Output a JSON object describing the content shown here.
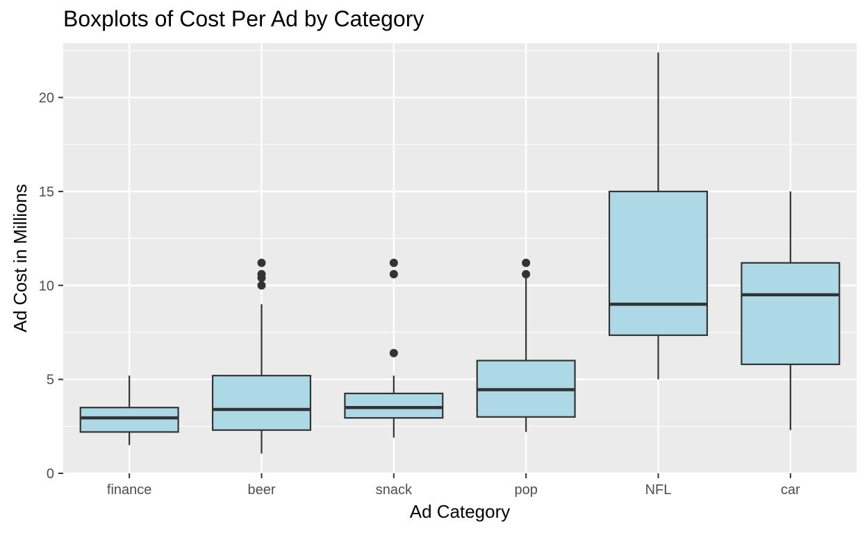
{
  "chart_data": {
    "type": "boxplot",
    "title": "Boxplots of Cost Per Ad by Category",
    "xlabel": "Ad Category",
    "ylabel": "Ad Cost in Millions",
    "ylim": [
      0,
      22.9
    ],
    "yticks": [
      0,
      5,
      10,
      15,
      20
    ],
    "grid": true,
    "colors": {
      "panel": "#ebebeb",
      "grid": "#ffffff",
      "box_fill": "#add8e6",
      "stroke": "#333333",
      "tick_text": "#4d4d4d"
    },
    "categories": [
      "finance",
      "beer",
      "snack",
      "pop",
      "NFL",
      "car"
    ],
    "boxes": [
      {
        "category": "finance",
        "whisker_low": 1.5,
        "q1": 2.2,
        "median": 2.95,
        "q3": 3.5,
        "whisker_high": 5.2,
        "outliers": []
      },
      {
        "category": "beer",
        "whisker_low": 1.05,
        "q1": 2.3,
        "median": 3.4,
        "q3": 5.2,
        "whisker_high": 9.0,
        "outliers": [
          10.0,
          10.4,
          10.6,
          11.2
        ]
      },
      {
        "category": "snack",
        "whisker_low": 1.9,
        "q1": 2.95,
        "median": 3.5,
        "q3": 4.25,
        "whisker_high": 5.2,
        "outliers": [
          6.4,
          10.6,
          11.2
        ]
      },
      {
        "category": "pop",
        "whisker_low": 2.2,
        "q1": 3.0,
        "median": 4.45,
        "q3": 6.0,
        "whisker_high": 10.5,
        "outliers": [
          10.6,
          11.2
        ]
      },
      {
        "category": "NFL",
        "whisker_low": 5.0,
        "q1": 7.35,
        "median": 9.0,
        "q3": 15.0,
        "whisker_high": 22.4,
        "outliers": []
      },
      {
        "category": "car",
        "whisker_low": 2.3,
        "q1": 5.8,
        "median": 9.5,
        "q3": 11.2,
        "whisker_high": 15.0,
        "outliers": []
      }
    ]
  }
}
